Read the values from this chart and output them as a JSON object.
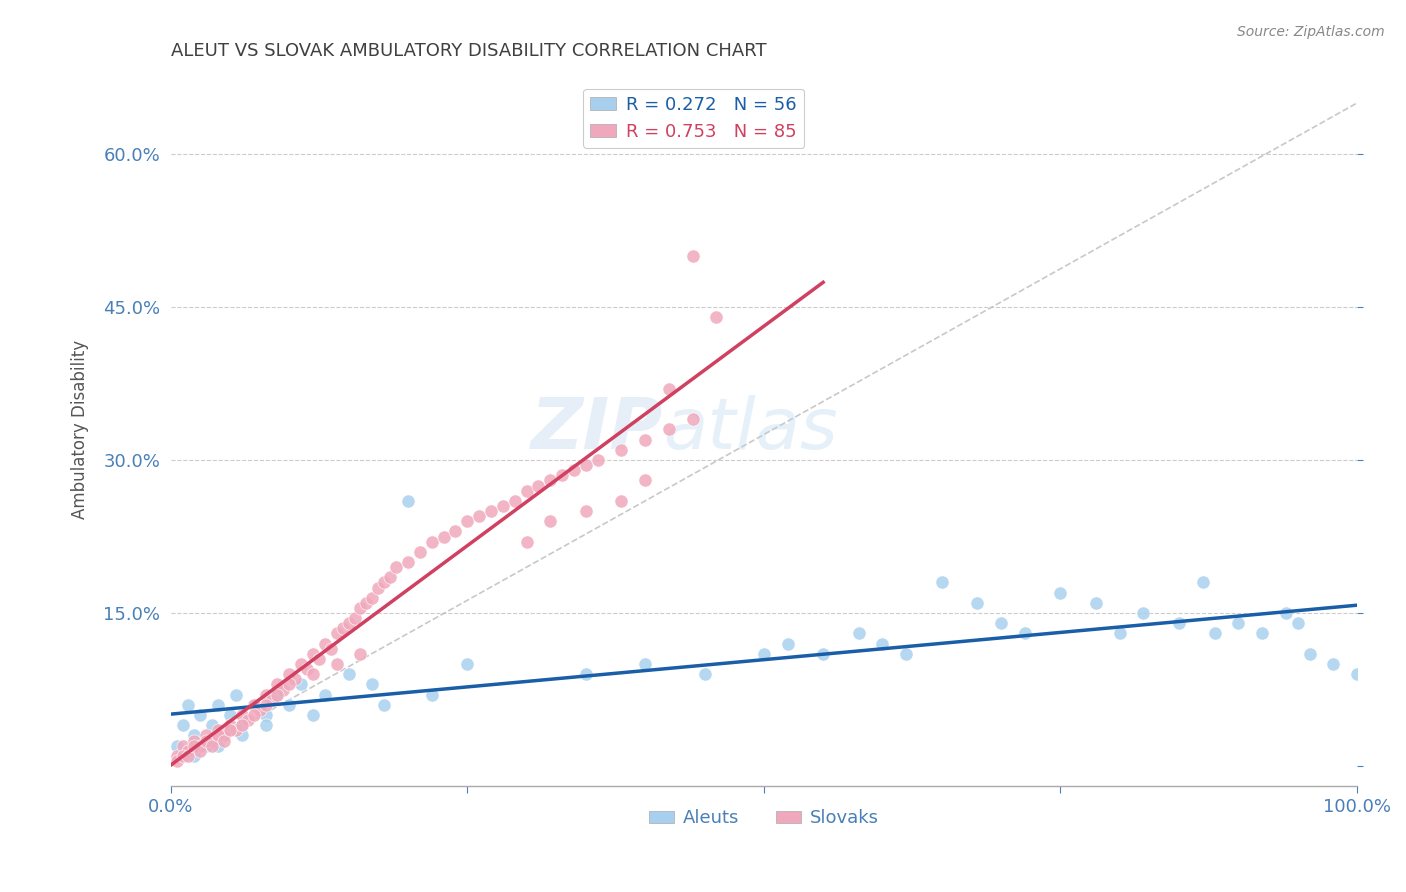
{
  "title": "ALEUT VS SLOVAK AMBULATORY DISABILITY CORRELATION CHART",
  "source": "Source: ZipAtlas.com",
  "ylabel": "Ambulatory Disability",
  "xlim": [
    0,
    1.0
  ],
  "ylim": [
    -0.02,
    0.68
  ],
  "yticks": [
    0.0,
    0.15,
    0.3,
    0.45,
    0.6
  ],
  "ytick_labels": [
    "",
    "15.0%",
    "30.0%",
    "45.0%",
    "60.0%"
  ],
  "xticks": [
    0.0,
    0.25,
    0.5,
    0.75,
    1.0
  ],
  "xtick_labels": [
    "0.0%",
    "",
    "",
    "",
    "100.0%"
  ],
  "aleut_color": "#A8D0EE",
  "slovak_color": "#F0A8BC",
  "aleut_line_color": "#1A5EA8",
  "slovak_line_color": "#D04060",
  "ref_line_color": "#BBBBBB",
  "legend_r_aleut": "R = 0.272",
  "legend_n_aleut": "N = 56",
  "legend_r_slovak": "R = 0.753",
  "legend_n_slovak": "N = 85",
  "title_color": "#404040",
  "axis_color": "#4A80B8",
  "aleut_x": [
    0.005,
    0.01,
    0.015,
    0.02,
    0.025,
    0.03,
    0.035,
    0.04,
    0.045,
    0.05,
    0.055,
    0.06,
    0.07,
    0.08,
    0.09,
    0.1,
    0.11,
    0.13,
    0.15,
    0.17,
    0.2,
    0.25,
    0.02,
    0.04,
    0.06,
    0.08,
    0.12,
    0.18,
    0.22,
    0.35,
    0.4,
    0.45,
    0.5,
    0.52,
    0.55,
    0.58,
    0.6,
    0.62,
    0.65,
    0.68,
    0.7,
    0.72,
    0.75,
    0.78,
    0.8,
    0.82,
    0.85,
    0.87,
    0.88,
    0.9,
    0.92,
    0.94,
    0.95,
    0.96,
    0.98,
    1.0
  ],
  "aleut_y": [
    0.02,
    0.04,
    0.06,
    0.03,
    0.05,
    0.02,
    0.04,
    0.06,
    0.03,
    0.05,
    0.07,
    0.04,
    0.06,
    0.05,
    0.07,
    0.06,
    0.08,
    0.07,
    0.09,
    0.08,
    0.26,
    0.1,
    0.01,
    0.02,
    0.03,
    0.04,
    0.05,
    0.06,
    0.07,
    0.09,
    0.1,
    0.09,
    0.11,
    0.12,
    0.11,
    0.13,
    0.12,
    0.11,
    0.18,
    0.16,
    0.14,
    0.13,
    0.17,
    0.16,
    0.13,
    0.15,
    0.14,
    0.18,
    0.13,
    0.14,
    0.13,
    0.15,
    0.14,
    0.11,
    0.1,
    0.09
  ],
  "slovak_x": [
    0.005,
    0.01,
    0.015,
    0.02,
    0.025,
    0.03,
    0.035,
    0.04,
    0.045,
    0.05,
    0.055,
    0.06,
    0.065,
    0.07,
    0.075,
    0.08,
    0.085,
    0.09,
    0.095,
    0.1,
    0.105,
    0.11,
    0.115,
    0.12,
    0.125,
    0.13,
    0.135,
    0.14,
    0.145,
    0.15,
    0.155,
    0.16,
    0.165,
    0.17,
    0.175,
    0.18,
    0.185,
    0.19,
    0.2,
    0.21,
    0.22,
    0.23,
    0.24,
    0.25,
    0.26,
    0.27,
    0.28,
    0.29,
    0.3,
    0.31,
    0.32,
    0.33,
    0.34,
    0.35,
    0.36,
    0.38,
    0.4,
    0.42,
    0.44,
    0.46,
    0.3,
    0.32,
    0.35,
    0.38,
    0.4,
    0.42,
    0.44,
    0.005,
    0.01,
    0.015,
    0.02,
    0.025,
    0.03,
    0.035,
    0.04,
    0.045,
    0.05,
    0.06,
    0.07,
    0.08,
    0.09,
    0.1,
    0.12,
    0.14,
    0.16
  ],
  "slovak_y": [
    0.01,
    0.02,
    0.015,
    0.025,
    0.02,
    0.03,
    0.025,
    0.035,
    0.03,
    0.04,
    0.035,
    0.05,
    0.045,
    0.06,
    0.055,
    0.07,
    0.065,
    0.08,
    0.075,
    0.09,
    0.085,
    0.1,
    0.095,
    0.11,
    0.105,
    0.12,
    0.115,
    0.13,
    0.135,
    0.14,
    0.145,
    0.155,
    0.16,
    0.165,
    0.175,
    0.18,
    0.185,
    0.195,
    0.2,
    0.21,
    0.22,
    0.225,
    0.23,
    0.24,
    0.245,
    0.25,
    0.255,
    0.26,
    0.27,
    0.275,
    0.28,
    0.285,
    0.29,
    0.295,
    0.3,
    0.31,
    0.32,
    0.33,
    0.34,
    0.44,
    0.22,
    0.24,
    0.25,
    0.26,
    0.28,
    0.37,
    0.5,
    0.005,
    0.01,
    0.01,
    0.02,
    0.015,
    0.025,
    0.02,
    0.03,
    0.025,
    0.035,
    0.04,
    0.05,
    0.06,
    0.07,
    0.08,
    0.09,
    0.1,
    0.11
  ]
}
